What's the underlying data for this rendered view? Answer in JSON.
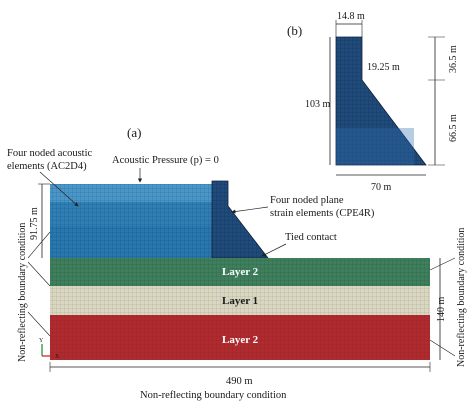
{
  "panel_a": {
    "label": "(a)",
    "acoustic_elements": [
      "Four noded acoustic",
      "elements (AC2D4)"
    ],
    "acoustic_pressure": "Acoustic Pressure (p) = 0",
    "plane_strain": [
      "Four noded plane",
      "strain elements (CPE4R)"
    ],
    "tied_contact": "Tied contact",
    "water_depth": "91.75 m",
    "foundation_depth": "140 m",
    "foundation_width": "490 m",
    "left_boundary": "Non-reflecting boundary condition",
    "right_boundary": "Non-reflecting boundary condition",
    "bottom_boundary": "Non-reflecting boundary condition",
    "layers": [
      {
        "name": "Layer 2",
        "color": "#3f7f5c"
      },
      {
        "name": "Layer 1",
        "color": "#d9d6c2"
      },
      {
        "name": "Layer 2",
        "color": "#b02a2e"
      }
    ],
    "water_color": "#2f7fb5",
    "dam_color": "#1f4a7a"
  },
  "panel_b": {
    "label": "(b)",
    "crest_width": "14.8 m",
    "upper_slope_dim": "19.25 m",
    "height": "103 m",
    "upper_height": "36.5 m",
    "lower_height": "66.5 m",
    "base_width": "70 m"
  },
  "axes_icon": {
    "x_label": "X",
    "y_label": "Y"
  }
}
